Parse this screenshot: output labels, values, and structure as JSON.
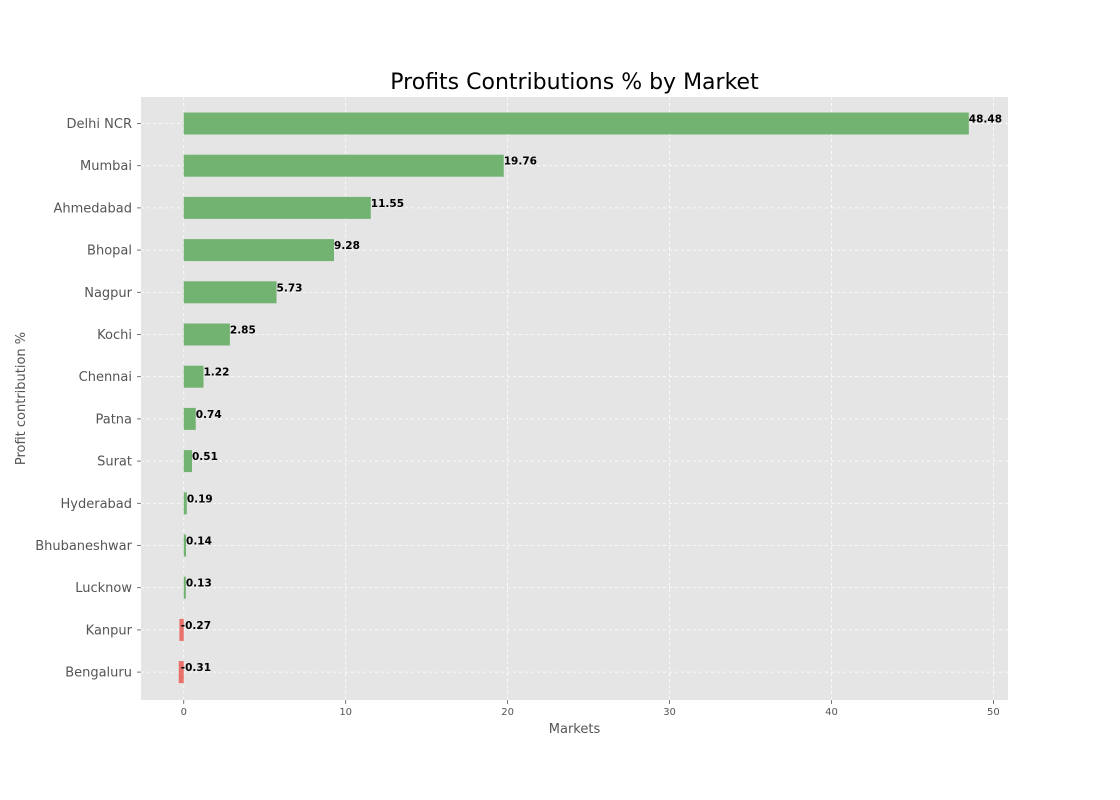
{
  "chart_data": {
    "type": "bar",
    "orientation": "horizontal",
    "title": "Profits Contributions % by Market",
    "xlabel": "Markets",
    "ylabel": "Profit contribution %",
    "categories": [
      "Delhi NCR",
      "Mumbai",
      "Ahmedabad",
      "Bhopal",
      "Nagpur",
      "Kochi",
      "Chennai",
      "Patna",
      "Surat",
      "Hyderabad",
      "Bhubaneshwar",
      "Lucknow",
      "Kanpur",
      "Bengaluru"
    ],
    "values": [
      48.48,
      19.76,
      11.55,
      9.28,
      5.73,
      2.85,
      1.22,
      0.74,
      0.51,
      0.19,
      0.14,
      0.13,
      -0.27,
      -0.31
    ],
    "value_labels": [
      "48.48",
      "19.76",
      "11.55",
      "9.28",
      "5.73",
      "2.85",
      "1.22",
      "0.74",
      "0.51",
      "0.19",
      "0.14",
      "0.13",
      "-0.27",
      "-0.31"
    ],
    "x_ticks": [
      0,
      10,
      20,
      30,
      40,
      50
    ],
    "x_tick_labels": [
      "0",
      "10",
      "20",
      "30",
      "40",
      "50"
    ],
    "xlim": [
      -2.64,
      50.9
    ],
    "grid": true,
    "colors": {
      "positive": "#72b372",
      "negative": "#e8726b",
      "plot_background": "#e5e5e5",
      "grid": "#ffffff"
    }
  }
}
